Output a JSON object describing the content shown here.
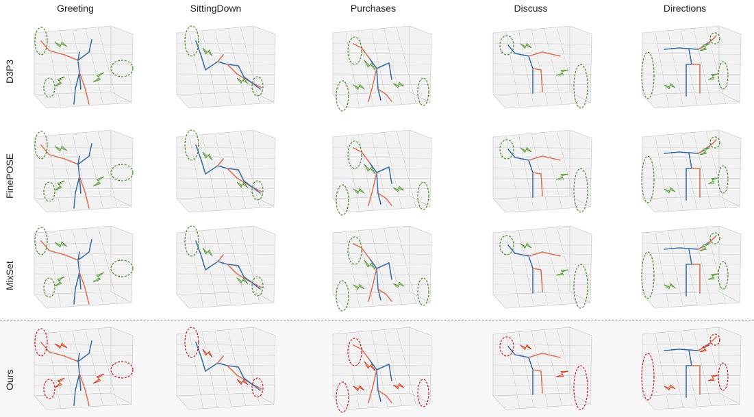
{
  "columns": [
    "Greeting",
    "SittingDown",
    "Purchases",
    "Discuss",
    "Directions"
  ],
  "rows": [
    "D3P3",
    "FinePOSE",
    "MixSet",
    "Ours"
  ],
  "colors": {
    "left_limb": "#3b6fa8",
    "right_limb": "#d9755a",
    "baseline_highlight": "#4e8f2e",
    "baseline_arrow_fill": "#a7d889",
    "ours_highlight": "#cc2222",
    "ours_arrow_fill": "#f6b33c",
    "grid": "#d0d0d0",
    "panel_bg": "#f2f2f2",
    "separator": "#8a8a8a"
  },
  "layout_note_style": "dashed-separator-before-last-row"
}
